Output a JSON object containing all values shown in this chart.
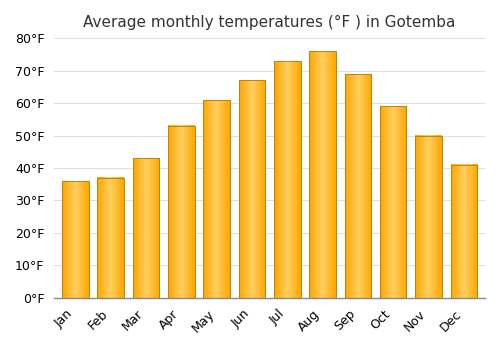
{
  "title": "Average monthly temperatures (°F ) in Gotemba",
  "months": [
    "Jan",
    "Feb",
    "Mar",
    "Apr",
    "May",
    "Jun",
    "Jul",
    "Aug",
    "Sep",
    "Oct",
    "Nov",
    "Dec"
  ],
  "values": [
    36,
    37,
    43,
    53,
    61,
    67,
    73,
    76,
    69,
    59,
    50,
    41
  ],
  "bar_color_center": "#FFD060",
  "bar_color_edge": "#FFA500",
  "bar_edge_color": "#B8860B",
  "background_color": "#FFFFFF",
  "grid_color": "#DDDDDD",
  "ylim": [
    0,
    80
  ],
  "yticks": [
    0,
    10,
    20,
    30,
    40,
    50,
    60,
    70,
    80
  ],
  "title_fontsize": 11,
  "tick_fontsize": 9,
  "bar_width": 0.75
}
